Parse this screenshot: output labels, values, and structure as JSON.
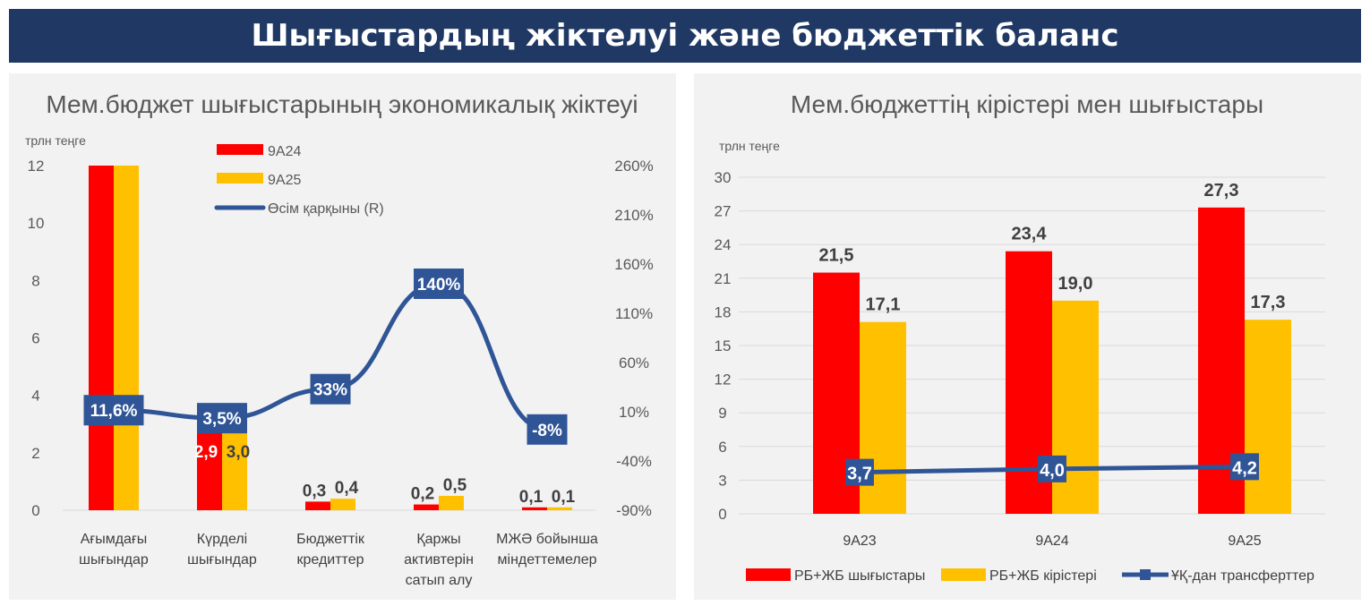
{
  "header": {
    "title": "Шығыстардың жіктелуі және бюджеттік баланс"
  },
  "colors": {
    "red": "#ff0000",
    "yellow": "#ffc000",
    "blue": "#2f5597",
    "navy": "#1f3864"
  },
  "chart_data": [
    {
      "type": "bar",
      "title": "Мем.бюджет шығыстарының экономикалық жіктеуі",
      "unit_label": "трлн теңге",
      "categories": [
        "Ағымдағы шығындар",
        "Күрделі шығындар",
        "Бюджеттік кредиттер",
        "Қаржы активтерін сатып алу",
        "МЖӘ бойынша міндеттемелер"
      ],
      "category_lines": [
        [
          "Ағымдағы",
          "шығындар"
        ],
        [
          "Күрделі",
          "шығындар"
        ],
        [
          "Бюджеттік",
          "кредиттер"
        ],
        [
          "Қаржы",
          "активтерін",
          "сатып алу"
        ],
        [
          "МЖӘ бойынша",
          "міндеттемелер"
        ]
      ],
      "series": [
        {
          "name": "9А24",
          "values": [
            12,
            2.9,
            0.3,
            0.2,
            0.1
          ],
          "labels": [
            "",
            "2,9",
            "0,3",
            "0,2",
            "0,1"
          ]
        },
        {
          "name": "9А25",
          "values": [
            12,
            3.0,
            0.4,
            0.5,
            0.1
          ],
          "labels": [
            "",
            "3,0",
            "0,4",
            "0,5",
            "0,1"
          ]
        },
        {
          "name": "Өсім қарқыны (R)",
          "axis": "right",
          "values": [
            11.6,
            3.5,
            33,
            140,
            -8
          ],
          "labels": [
            "11,6%",
            "3,5%",
            "33%",
            "140%",
            "-8%"
          ]
        }
      ],
      "ylim": [
        0,
        12
      ],
      "yticks": [
        "0",
        "2",
        "4",
        "6",
        "8",
        "10",
        "12"
      ],
      "y2lim": [
        -90,
        260
      ],
      "y2ticks": [
        "-90%",
        "-40%",
        "10%",
        "60%",
        "110%",
        "160%",
        "210%",
        "260%"
      ],
      "legend": "top-center"
    },
    {
      "type": "bar",
      "title": "Мем.бюджеттің кірістері мен шығыстары",
      "unit_label": "трлн теңге",
      "categories": [
        "9А23",
        "9А24",
        "9А25"
      ],
      "series": [
        {
          "name": "РБ+ЖБ шығыстары",
          "values": [
            21.5,
            23.4,
            27.3
          ],
          "labels": [
            "21,5",
            "23,4",
            "27,3"
          ]
        },
        {
          "name": "РБ+ЖБ кірістері",
          "values": [
            17.1,
            19.0,
            17.3
          ],
          "labels": [
            "17,1",
            "19,0",
            "17,3"
          ]
        },
        {
          "name": "ҰҚ-дан трансферттер",
          "type": "line",
          "values": [
            3.7,
            4.0,
            4.2
          ],
          "labels": [
            "3,7",
            "4,0",
            "4,2"
          ]
        }
      ],
      "ylim": [
        0,
        30
      ],
      "yticks": [
        "0",
        "3",
        "6",
        "9",
        "12",
        "15",
        "18",
        "21",
        "24",
        "27",
        "30"
      ],
      "legend": "bottom"
    }
  ]
}
